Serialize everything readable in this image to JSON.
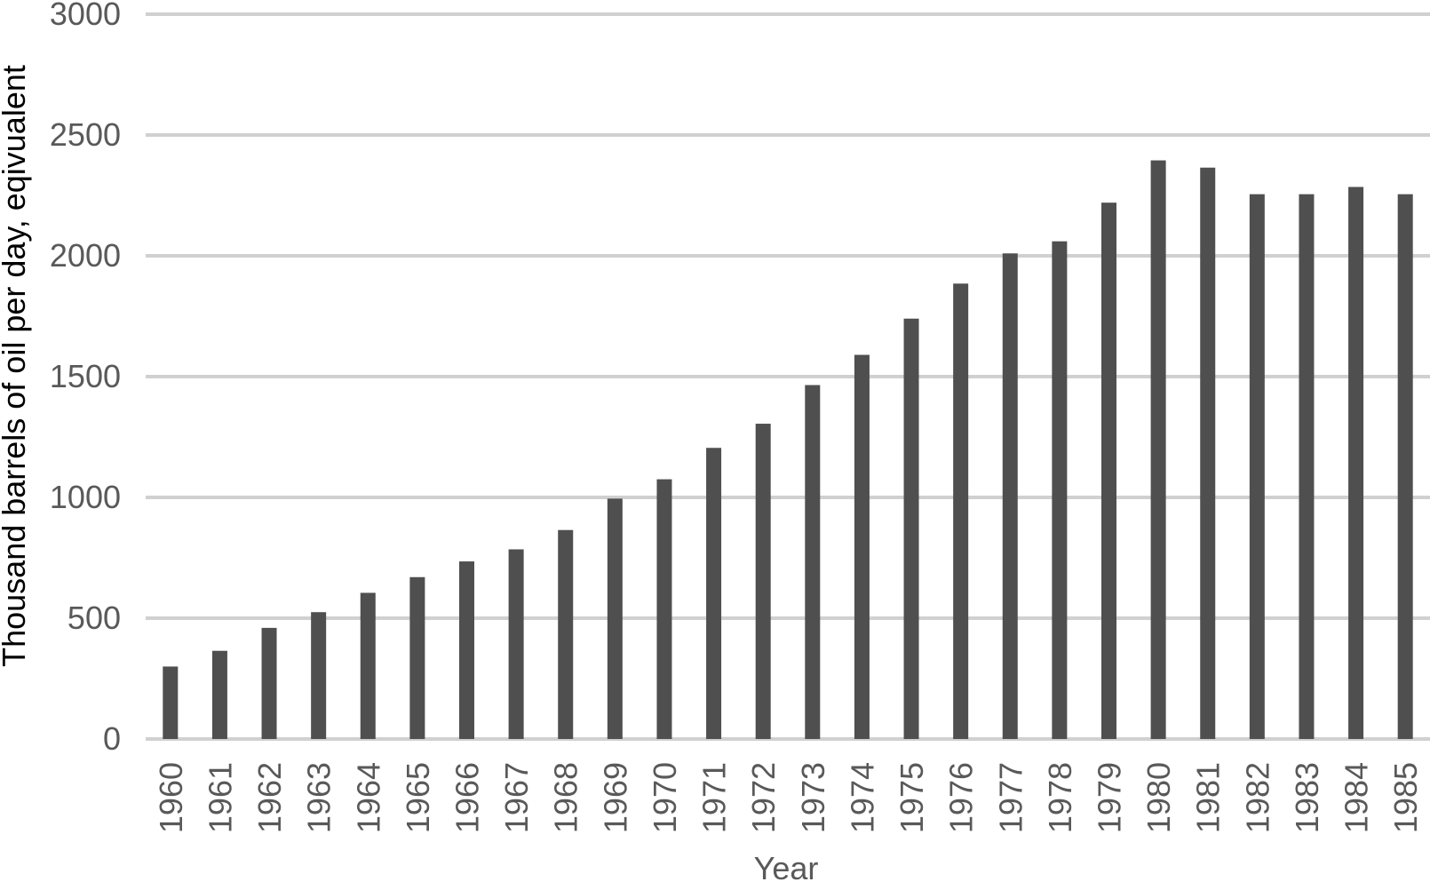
{
  "chart_data": {
    "type": "bar",
    "categories": [
      "1960",
      "1961",
      "1962",
      "1963",
      "1964",
      "1965",
      "1966",
      "1967",
      "1968",
      "1969",
      "1970",
      "1971",
      "1972",
      "1973",
      "1974",
      "1975",
      "1976",
      "1977",
      "1978",
      "1979",
      "1980",
      "1981",
      "1982",
      "1983",
      "1984",
      "1985"
    ],
    "values": [
      300,
      365,
      460,
      525,
      605,
      670,
      735,
      785,
      865,
      995,
      1075,
      1205,
      1305,
      1465,
      1590,
      1740,
      1885,
      2010,
      2060,
      2220,
      2395,
      2365,
      2255,
      2255,
      2285,
      2255
    ],
    "title": "",
    "xlabel": "Year",
    "ylabel": "Thousand barrels of oil per day, eqivualent",
    "ylim": [
      0,
      3000
    ],
    "yticks": [
      "0",
      "500",
      "1000",
      "1500",
      "2000",
      "2500",
      "3000"
    ],
    "grid": true,
    "colors": {
      "bar": "#4f4f4f",
      "grid": "#d0d0d0",
      "axis": "#d0d0d0",
      "tick_text": "#595959"
    }
  }
}
